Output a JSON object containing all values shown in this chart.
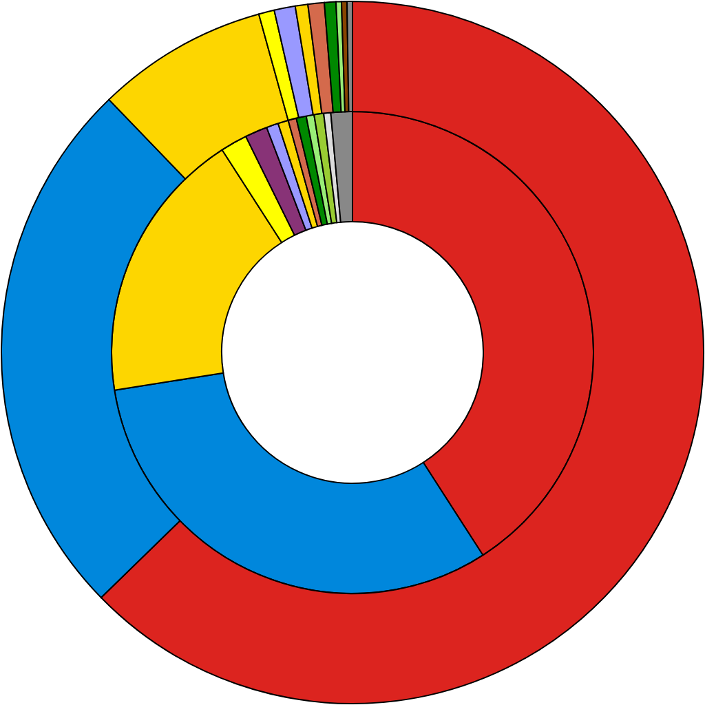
{
  "chart_data": {
    "type": "donut",
    "series": [
      {
        "values": [
          40.9,
          31.6,
          18.4,
          1.8,
          1.5,
          0.8,
          0.7,
          0.55,
          0.67,
          0.53,
          0.64,
          0.47,
          1.44
        ],
        "colors": [
          "#dc241f",
          "#0087dc",
          "#fdd600",
          "#ffff00",
          "#883377",
          "#9999ff",
          "#fdd600",
          "#d46a4c",
          "#008800",
          "#99ee77",
          "#99cc33",
          "#dddddd",
          "#888888"
        ]
      },
      {
        "values": [
          62.7,
          25.1,
          7.9,
          0.72,
          0.97,
          0.58,
          0.75,
          0.53,
          0.25,
          0.25,
          0.25
        ],
        "colors": [
          "#dc241f",
          "#0087dc",
          "#fdd600",
          "#ffff00",
          "#9999ff",
          "#fdd600",
          "#d46a4c",
          "#008800",
          "#99ee77",
          "#884400",
          "#888888"
        ]
      }
    ]
  }
}
